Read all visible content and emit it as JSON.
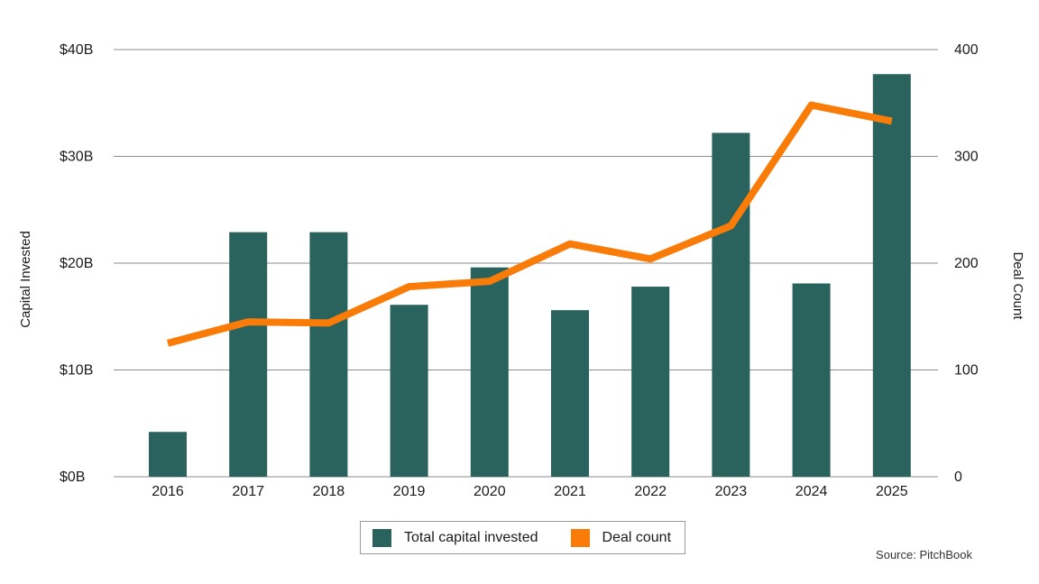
{
  "chart_data": {
    "type": "bar+line combo",
    "categories": [
      "2016",
      "2017",
      "2018",
      "2019",
      "2020",
      "2021",
      "2022",
      "2023",
      "2024",
      "2025"
    ],
    "series": [
      {
        "name": "Total capital invested",
        "type": "bar",
        "axis": "left",
        "color": "#2A625D",
        "values": [
          4.2,
          22.9,
          22.9,
          16.1,
          19.6,
          15.6,
          17.8,
          32.2,
          18.1,
          37.7
        ]
      },
      {
        "name": "Deal count",
        "type": "line",
        "axis": "right",
        "color": "#F97B08",
        "values": [
          125,
          145,
          144,
          178,
          183,
          218,
          204,
          235,
          348,
          333
        ]
      }
    ],
    "left_axis": {
      "title": "Capital Invested",
      "tick_labels": [
        "$0B",
        "$10B",
        "$20B",
        "$30B",
        "$40B"
      ],
      "tick_values": [
        0,
        10,
        20,
        30,
        40
      ],
      "range": [
        0,
        40
      ]
    },
    "right_axis": {
      "title": "Deal Count",
      "tick_labels": [
        "0",
        "100",
        "200",
        "300",
        "400"
      ],
      "tick_values": [
        0,
        100,
        200,
        300,
        400
      ],
      "range": [
        0,
        400
      ]
    },
    "grid": "horizontal gridlines on, gray",
    "legend_position": "bottom-center, boxed",
    "gridline_color": "#8C8C8C",
    "text_color": "#1A1A1A",
    "source": "Source: PitchBook"
  }
}
